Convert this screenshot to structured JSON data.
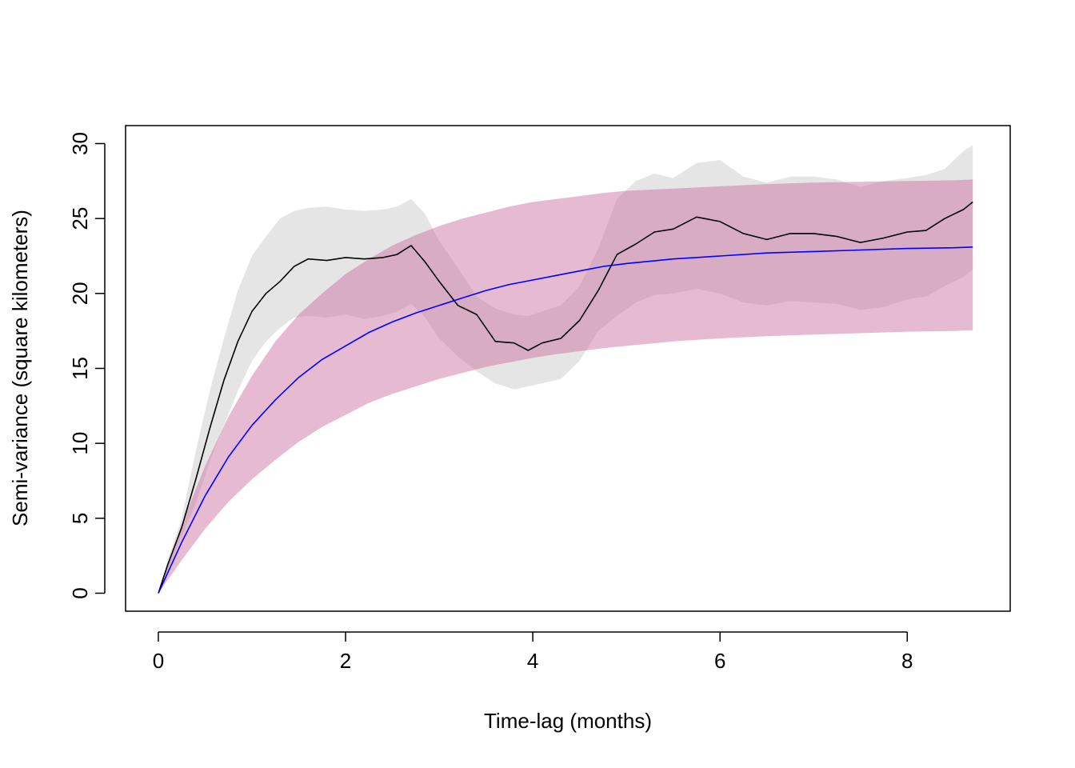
{
  "chart_data": {
    "type": "line",
    "title": "",
    "xlabel": "Time-lag (months)",
    "ylabel": "Semi-variance (square kilometers)",
    "xlim": [
      -0.35,
      9.1
    ],
    "ylim": [
      -1.2,
      31.2
    ],
    "xticks": [
      0,
      2,
      4,
      6,
      8
    ],
    "yticks": [
      0,
      5,
      10,
      15,
      20,
      25,
      30
    ],
    "grid": false,
    "legend": "none",
    "colors": {
      "empirical_line": "#000000",
      "empirical_band": "#e5e5e5",
      "model_line": "#0000ff",
      "model_band": "#c7699b"
    },
    "model": {
      "x": [
        0,
        0.25,
        0.5,
        0.75,
        1.0,
        1.25,
        1.5,
        1.75,
        2.0,
        2.25,
        2.5,
        2.75,
        3.0,
        3.25,
        3.5,
        3.75,
        4.0,
        4.25,
        4.5,
        4.75,
        5.0,
        5.5,
        6.0,
        6.5,
        7.0,
        7.5,
        8.0,
        8.5,
        8.7
      ],
      "y": [
        0,
        3.4,
        6.5,
        9.1,
        11.2,
        12.9,
        14.4,
        15.6,
        16.5,
        17.4,
        18.1,
        18.7,
        19.2,
        19.7,
        20.2,
        20.6,
        20.9,
        21.2,
        21.5,
        21.8,
        22.0,
        22.3,
        22.5,
        22.7,
        22.8,
        22.9,
        23.0,
        23.05,
        23.1
      ],
      "upper": [
        0,
        4.6,
        8.5,
        11.8,
        14.5,
        16.8,
        18.6,
        20.0,
        21.3,
        22.3,
        23.2,
        23.9,
        24.5,
        25.0,
        25.4,
        25.8,
        26.1,
        26.3,
        26.5,
        26.7,
        26.85,
        27.0,
        27.15,
        27.3,
        27.4,
        27.45,
        27.5,
        27.55,
        27.6
      ],
      "lower": [
        0,
        2.2,
        4.3,
        6.1,
        7.6,
        8.9,
        10.1,
        11.1,
        11.9,
        12.7,
        13.3,
        13.8,
        14.3,
        14.7,
        15.1,
        15.4,
        15.7,
        15.95,
        16.15,
        16.35,
        16.5,
        16.8,
        17.0,
        17.15,
        17.25,
        17.35,
        17.45,
        17.5,
        17.55
      ]
    },
    "empirical": {
      "x": [
        0,
        0.1,
        0.25,
        0.4,
        0.55,
        0.7,
        0.85,
        1.0,
        1.15,
        1.3,
        1.45,
        1.6,
        1.8,
        2.0,
        2.2,
        2.4,
        2.55,
        2.7,
        2.85,
        3.0,
        3.2,
        3.4,
        3.6,
        3.8,
        3.95,
        4.1,
        4.3,
        4.5,
        4.7,
        4.9,
        5.1,
        5.3,
        5.5,
        5.75,
        6.0,
        6.25,
        6.5,
        6.75,
        7.0,
        7.25,
        7.5,
        7.75,
        8.0,
        8.2,
        8.4,
        8.6,
        8.7
      ],
      "y": [
        0,
        1.9,
        4.4,
        7.6,
        11.0,
        14.2,
        16.8,
        18.8,
        20.0,
        20.8,
        21.8,
        22.3,
        22.2,
        22.4,
        22.3,
        22.4,
        22.6,
        23.2,
        22.1,
        20.8,
        19.2,
        18.6,
        16.8,
        16.7,
        16.2,
        16.7,
        17.0,
        18.2,
        20.2,
        22.6,
        23.3,
        24.1,
        24.3,
        25.1,
        24.8,
        24.0,
        23.6,
        24.0,
        24.0,
        23.8,
        23.4,
        23.7,
        24.1,
        24.2,
        25.0,
        25.6,
        26.1
      ],
      "upper": [
        0,
        2.2,
        5.0,
        9.5,
        13.5,
        17.0,
        20.2,
        22.5,
        23.8,
        25.0,
        25.5,
        25.7,
        25.8,
        25.6,
        25.5,
        25.6,
        25.8,
        26.3,
        25.3,
        23.5,
        21.7,
        19.8,
        19.0,
        18.6,
        18.5,
        18.8,
        19.2,
        20.5,
        23.0,
        26.3,
        27.5,
        28.0,
        27.7,
        28.7,
        28.9,
        27.8,
        27.4,
        27.8,
        27.8,
        27.6,
        27.1,
        27.5,
        27.7,
        27.9,
        28.3,
        29.5,
        29.9
      ],
      "lower": [
        0,
        1.5,
        3.8,
        6.0,
        8.8,
        11.2,
        13.5,
        15.5,
        16.8,
        17.7,
        18.4,
        18.5,
        18.4,
        18.6,
        18.3,
        18.5,
        18.8,
        19.3,
        18.4,
        17.0,
        15.8,
        14.8,
        14.0,
        13.6,
        13.8,
        14.0,
        14.3,
        15.5,
        17.5,
        18.5,
        19.4,
        19.9,
        20.0,
        20.3,
        20.0,
        19.4,
        19.2,
        19.5,
        19.4,
        19.3,
        18.9,
        19.1,
        19.6,
        19.8,
        20.5,
        21.1,
        21.6
      ]
    }
  }
}
